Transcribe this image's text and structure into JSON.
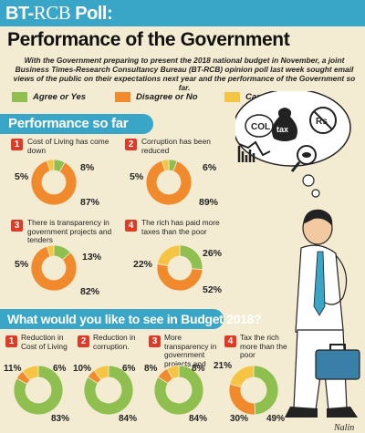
{
  "header": {
    "brand_left": "BT-",
    "brand_mid": "RCB",
    "brand_right": " Poll:",
    "title": "Performance of the Government",
    "intro": "With the Government preparing to present the 2018 national budget in November, a joint Business Times-Research Consultancy Bureau (BT-RCB) opinion poll last week sought email views of the public on their expectations next year and the performance of the Government so far."
  },
  "legend": [
    {
      "label": "Agree or Yes",
      "color": "#8fbf4f"
    },
    {
      "label": "Disagree or No",
      "color": "#f08a2c"
    },
    {
      "label": "Cannot comment",
      "color": "#f6c443"
    }
  ],
  "illustration": {
    "bubble_col": "COL",
    "bubble_tax": "tax",
    "bubble_rs": "Rs",
    "signature": "Nalin"
  },
  "sections": {
    "performance": "Performance so far",
    "budget": "What would you like to see in Budget 2018?"
  },
  "chart_data": [
    {
      "type": "pie",
      "num": "1",
      "question": "Cost of Living has come down",
      "values": [
        8,
        87,
        5
      ],
      "labels": [
        "8%",
        "87%",
        "5%"
      ],
      "categories": [
        "Agree or Yes",
        "Disagree or No",
        "Cannot comment"
      ]
    },
    {
      "type": "pie",
      "num": "2",
      "question": "Corruption has been reduced",
      "values": [
        6,
        89,
        5
      ],
      "labels": [
        "6%",
        "89%",
        "5%"
      ],
      "categories": [
        "Agree or Yes",
        "Disagree or No",
        "Cannot comment"
      ]
    },
    {
      "type": "pie",
      "num": "3",
      "question": "There is transparency in government projects and tenders",
      "values": [
        13,
        82,
        5
      ],
      "labels": [
        "13%",
        "82%",
        "5%"
      ],
      "categories": [
        "Agree or Yes",
        "Disagree or No",
        "Cannot comment"
      ]
    },
    {
      "type": "pie",
      "num": "4",
      "question": "The rich has paid more taxes than the poor",
      "values": [
        26,
        52,
        22
      ],
      "labels": [
        "26%",
        "52%",
        "22%"
      ],
      "categories": [
        "Agree or Yes",
        "Disagree or No",
        "Cannot comment"
      ]
    },
    {
      "type": "pie",
      "num": "1",
      "question": "Reduction in Cost of Living",
      "values": [
        83,
        6,
        11
      ],
      "labels": [
        "83%",
        "6%",
        "11%"
      ],
      "categories": [
        "Agree or Yes",
        "Disagree or No",
        "Cannot comment"
      ]
    },
    {
      "type": "pie",
      "num": "2",
      "question": "Reduction in corruption.",
      "values": [
        84,
        6,
        10
      ],
      "labels": [
        "84%",
        "6%",
        "10%"
      ],
      "categories": [
        "Agree or Yes",
        "Disagree or No",
        "Cannot comment"
      ]
    },
    {
      "type": "pie",
      "num": "3",
      "question": "More transparency in government projects and tenders",
      "values": [
        84,
        8,
        8
      ],
      "labels": [
        "84%",
        "8%",
        "8%"
      ],
      "categories": [
        "Agree or Yes",
        "Disagree or No",
        "Cannot comment"
      ]
    },
    {
      "type": "pie",
      "num": "4",
      "question": "Tax the rich more than the poor",
      "values": [
        49,
        30,
        21
      ],
      "labels": [
        "49%",
        "30%",
        "21%"
      ],
      "categories": [
        "Agree or Yes",
        "Disagree or No",
        "Cannot comment"
      ]
    }
  ]
}
